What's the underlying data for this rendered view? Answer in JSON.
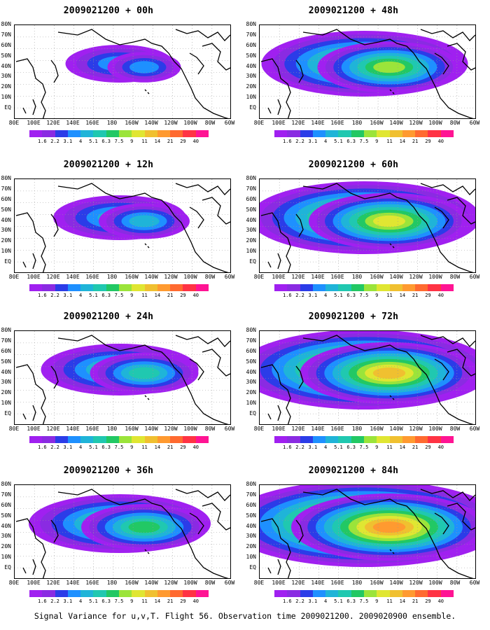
{
  "panels": [
    {
      "title": "2009021200 + 00h"
    },
    {
      "title": "2009021200 + 48h"
    },
    {
      "title": "2009021200 + 12h"
    },
    {
      "title": "2009021200 + 60h"
    },
    {
      "title": "2009021200 + 24h"
    },
    {
      "title": "2009021200 + 72h"
    },
    {
      "title": "2009021200 + 36h"
    },
    {
      "title": "2009021200 + 84h"
    }
  ],
  "lat_labels": [
    "80N",
    "70N",
    "60N",
    "50N",
    "40N",
    "30N",
    "20N",
    "10N",
    "EQ"
  ],
  "lon_labels": [
    "80E",
    "100E",
    "120E",
    "140E",
    "160E",
    "180",
    "160W",
    "140W",
    "120W",
    "100W",
    "80W",
    "60W"
  ],
  "colorbar": {
    "colors": [
      "#a020f0",
      "#8a2be2",
      "#2b3ce8",
      "#1e90ff",
      "#1fb4d8",
      "#20c8b0",
      "#22c864",
      "#9be43a",
      "#e0e632",
      "#f0c030",
      "#ff9a30",
      "#ff6a30",
      "#ff3344",
      "#ff1493"
    ],
    "ticks": [
      "1.6",
      "2.2",
      "3.1",
      "4",
      "5.1",
      "6.3",
      "7.5",
      "9",
      "11",
      "14",
      "21",
      "29",
      "40"
    ]
  },
  "caption": "Signal Variance for u,v,T. Flight 56. Observation time 2009021200. 2009020900 ensemble."
}
